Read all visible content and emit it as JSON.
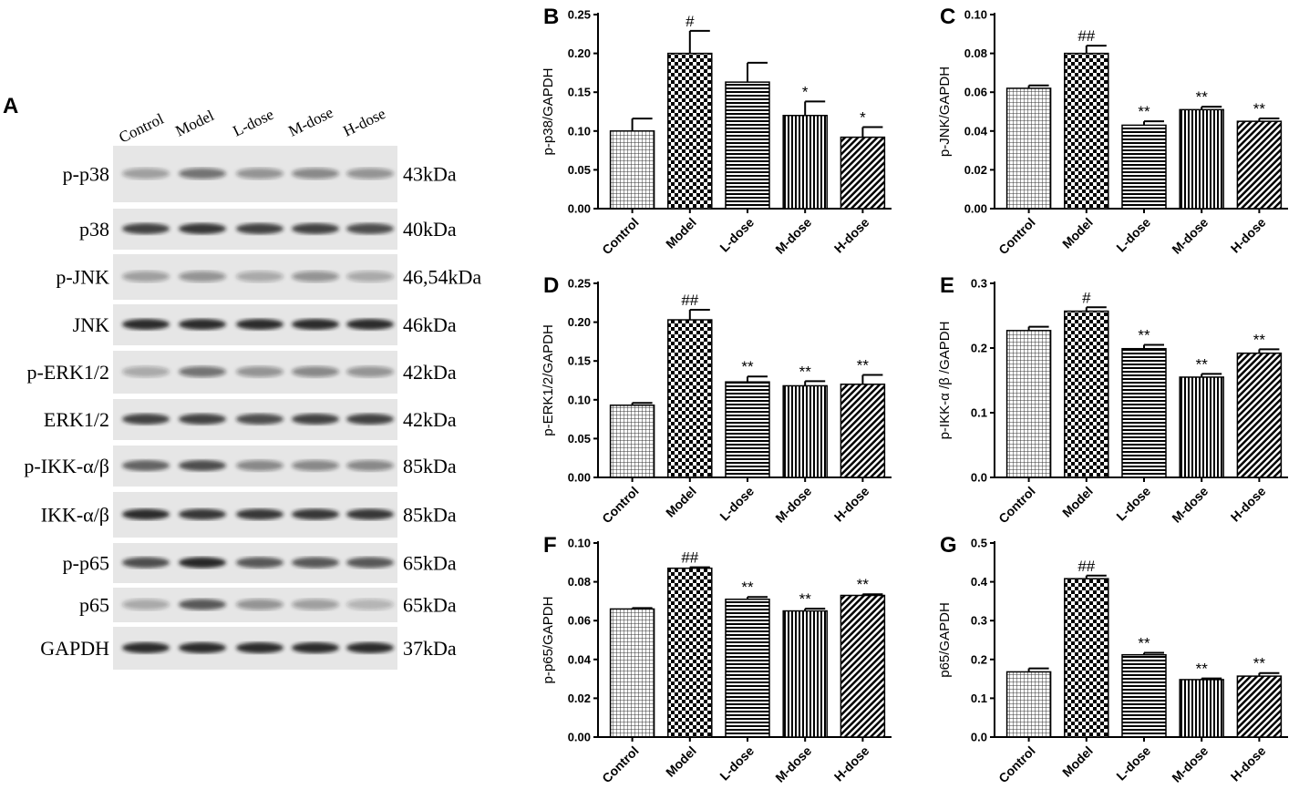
{
  "figure": {
    "panel_a": {
      "letter": "A",
      "columns": [
        "Control",
        "Model",
        "L-dose",
        "M-dose",
        "H-dose"
      ],
      "rows": [
        {
          "protein": "p-p38",
          "size": "43kDa"
        },
        {
          "protein": "p38",
          "size": "40kDa"
        },
        {
          "protein": "p-JNK",
          "size": "46,54kDa"
        },
        {
          "protein": "JNK",
          "size": "46kDa"
        },
        {
          "protein": "p-ERK1/2",
          "size": "42kDa"
        },
        {
          "protein": "ERK1/2",
          "size": "42kDa"
        },
        {
          "protein": "p-IKK-α/β",
          "size": "85kDa"
        },
        {
          "protein": "IKK-α/β",
          "size": "85kDa"
        },
        {
          "protein": "p-p65",
          "size": "65kDa"
        },
        {
          "protein": "p65",
          "size": "65kDa"
        },
        {
          "protein": "GAPDH",
          "size": "37kDa"
        }
      ]
    }
  },
  "chart_data": [
    {
      "panel": "B",
      "type": "bar",
      "categories": [
        "Control",
        "Model",
        "L-dose",
        "M-dose",
        "H-dose"
      ],
      "values": [
        0.1,
        0.2,
        0.163,
        0.12,
        0.092
      ],
      "errors": [
        0.016,
        0.029,
        0.025,
        0.018,
        0.013
      ],
      "significance": [
        "",
        "#",
        "",
        "*",
        "*"
      ],
      "ylabel": "p-p38/GAPDH",
      "ylim": [
        0,
        0.25
      ],
      "yticks": [
        "0.00",
        "0.05",
        "0.10",
        "0.15",
        "0.20",
        "0.25"
      ]
    },
    {
      "panel": "C",
      "type": "bar",
      "categories": [
        "Control",
        "Model",
        "L-dose",
        "M-dose",
        "H-dose"
      ],
      "values": [
        0.062,
        0.08,
        0.043,
        0.051,
        0.045
      ],
      "errors": [
        0.0015,
        0.004,
        0.002,
        0.0015,
        0.0015
      ],
      "significance": [
        "",
        "##",
        "**",
        "**",
        "**"
      ],
      "ylabel": "p-JNK/GAPDH",
      "ylim": [
        0,
        0.1
      ],
      "yticks": [
        "0.00",
        "0.02",
        "0.04",
        "0.06",
        "0.08",
        "0.10"
      ]
    },
    {
      "panel": "D",
      "type": "bar",
      "categories": [
        "Control",
        "Model",
        "L-dose",
        "M-dose",
        "H-dose"
      ],
      "values": [
        0.093,
        0.203,
        0.123,
        0.118,
        0.12
      ],
      "errors": [
        0.003,
        0.013,
        0.007,
        0.006,
        0.012
      ],
      "significance": [
        "",
        "##",
        "**",
        "**",
        "**"
      ],
      "ylabel": "p-ERK1/2/GAPDH",
      "ylim": [
        0,
        0.25
      ],
      "yticks": [
        "0.00",
        "0.05",
        "0.10",
        "0.15",
        "0.20",
        "0.25"
      ]
    },
    {
      "panel": "E",
      "type": "bar",
      "categories": [
        "Control",
        "Model",
        "L-dose",
        "M-dose",
        "H-dose"
      ],
      "values": [
        0.227,
        0.257,
        0.199,
        0.155,
        0.192
      ],
      "errors": [
        0.006,
        0.006,
        0.006,
        0.005,
        0.006
      ],
      "significance": [
        "",
        "#",
        "**",
        "**",
        "**"
      ],
      "ylabel": "p-IKK-α /β /GAPDH",
      "ylim": [
        0,
        0.3
      ],
      "yticks": [
        "0.0",
        "0.1",
        "0.2",
        "0.3"
      ]
    },
    {
      "panel": "F",
      "type": "bar",
      "categories": [
        "Control",
        "Model",
        "L-dose",
        "M-dose",
        "H-dose"
      ],
      "values": [
        0.066,
        0.087,
        0.071,
        0.065,
        0.073
      ],
      "errors": [
        0.0005,
        0.0005,
        0.0012,
        0.0012,
        0.0006
      ],
      "significance": [
        "",
        "##",
        "**",
        "**",
        "**"
      ],
      "ylabel": "p-p65/GAPDH",
      "ylim": [
        0,
        0.1
      ],
      "yticks": [
        "0.00",
        "0.02",
        "0.04",
        "0.06",
        "0.08",
        "0.10"
      ]
    },
    {
      "panel": "G",
      "type": "bar",
      "categories": [
        "Control",
        "Model",
        "L-dose",
        "M-dose",
        "H-dose"
      ],
      "values": [
        0.168,
        0.408,
        0.212,
        0.148,
        0.157
      ],
      "errors": [
        0.009,
        0.008,
        0.005,
        0.003,
        0.008
      ],
      "significance": [
        "",
        "##",
        "**",
        "**",
        "**"
      ],
      "ylabel": "p65/GAPDH",
      "ylim": [
        0,
        0.5
      ],
      "yticks": [
        "0.0",
        "0.1",
        "0.2",
        "0.3",
        "0.4",
        "0.5"
      ]
    }
  ]
}
